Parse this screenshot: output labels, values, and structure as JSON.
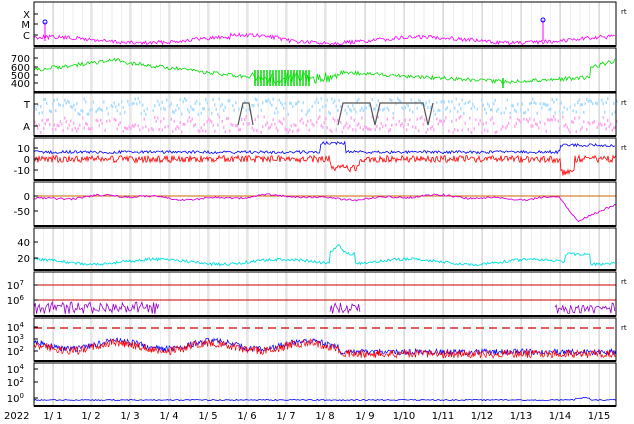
{
  "chart_data": [
    {
      "type": "line",
      "panel": "xray-flux",
      "tick_labels": [
        "X",
        "M",
        "C"
      ],
      "unit_mark": "rt",
      "series": [],
      "x_range": [
        0,
        15.5
      ],
      "colors": {
        "line": "#ff00ff"
      }
    },
    {
      "type": "line",
      "panel": "solar-wind-speed",
      "tick_labels": [
        "700",
        "600",
        "500",
        "400"
      ],
      "ylim": [
        350,
        750
      ],
      "series": [],
      "x_range": [
        0,
        15.5
      ],
      "colors": {
        "line": "#00dd00"
      }
    },
    {
      "type": "line",
      "panel": "temperature-activity",
      "tick_labels": [
        "T",
        "A"
      ],
      "unit_mark": "rt",
      "series": [],
      "x_range": [
        0,
        15.5
      ],
      "colors": {
        "t": "#aaddff",
        "a": "#ffaaee",
        "step": "#555555"
      }
    },
    {
      "type": "line",
      "panel": "imf",
      "tick_labels": [
        "10",
        "0",
        "-10"
      ],
      "ylim": [
        -18,
        18
      ],
      "unit_mark": "rt",
      "series": [],
      "x_range": [
        0,
        15.5
      ],
      "colors": {
        "bt": "#0000ff",
        "bz": "#ff0000"
      }
    },
    {
      "type": "line",
      "panel": "dst",
      "tick_labels": [
        "0",
        "-50"
      ],
      "ylim": [
        -110,
        20
      ],
      "series": [],
      "x_range": [
        0,
        15.5
      ],
      "colors": {
        "line": "#dd00dd",
        "zero": "#cc6600"
      }
    },
    {
      "type": "line",
      "panel": "density",
      "tick_labels": [
        "40",
        "20"
      ],
      "ylim": [
        0,
        50
      ],
      "series": [],
      "x_range": [
        0,
        15.5
      ],
      "colors": {
        "line": "#00e0e0"
      }
    },
    {
      "type": "line",
      "panel": "electron-flux",
      "tick_labels": [
        "10^7",
        "10^6"
      ],
      "unit_mark": "rt",
      "series": [],
      "x_range": [
        0,
        15.5
      ],
      "colors": {
        "line": "#9900cc",
        "threshold": "#cc0000"
      }
    },
    {
      "type": "line",
      "panel": "proton-flux",
      "tick_labels": [
        "10^4",
        "10^3",
        "10^2"
      ],
      "unit_mark": "rt",
      "series": [],
      "x_range": [
        0,
        15.5
      ],
      "colors": {
        "a": "#0000ff",
        "b": "#ff0000",
        "threshold": "#cc0000"
      }
    },
    {
      "type": "line",
      "panel": "high-energy-flux",
      "tick_labels": [
        "10^4",
        "10^2",
        "10^0"
      ],
      "series": [],
      "x_range": [
        0,
        15.5
      ],
      "colors": {
        "line": "#0000ff"
      }
    }
  ],
  "x_axis": {
    "year": "2022",
    "ticks": [
      "1/ 1",
      "1/ 2",
      "1/ 3",
      "1/ 4",
      "1/ 5",
      "1/ 6",
      "1/ 7",
      "1/ 8",
      "1/ 9",
      "1/10",
      "1/11",
      "1/12",
      "1/13",
      "1/14",
      "1/15"
    ]
  }
}
